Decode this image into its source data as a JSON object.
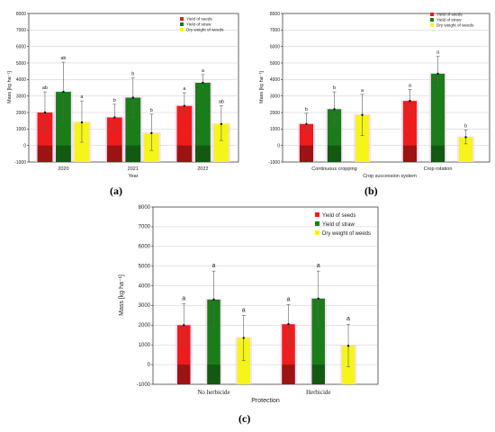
{
  "panels": {
    "a": "(a)",
    "b": "(b)",
    "c": "(c)"
  },
  "legend": {
    "seeds": "Yield of seeds",
    "straw": "Yield of straw",
    "weeds": "Dry weight of weeds"
  },
  "legend_c": {
    "seeds": "Yield of seeds",
    "straw": "Yield of straw",
    "weeds": "Dry weight of weeds"
  },
  "colors": {
    "seeds": "#ee1c1c",
    "straw": "#1a7d1a",
    "weeds": "#f5f51a",
    "seeds_marker": "#5a0d0d",
    "straw_marker": "#0d3d0d",
    "error_bar": "#5f5f5f"
  },
  "chart_data": [
    {
      "type": "bar",
      "id": "a",
      "xlabel": "Year",
      "ylabel": "Mass [kg ha⁻¹]",
      "ylim": [
        -1000,
        8000
      ],
      "yticks": [
        -1000,
        0,
        1000,
        2000,
        3000,
        4000,
        5000,
        6000,
        7000,
        8000
      ],
      "categories": [
        "2020",
        "2021",
        "2022"
      ],
      "series": [
        {
          "name": "Yield of seeds",
          "key": "seeds",
          "values": [
            2000,
            1700,
            2400
          ],
          "err_low": [
            800,
            900,
            2000
          ],
          "err_high": [
            3250,
            2500,
            3200
          ],
          "labels": [
            "ab",
            "b",
            "a"
          ]
        },
        {
          "name": "Yield of straw",
          "key": "straw",
          "values": [
            3250,
            2900,
            3800
          ],
          "err_low": [
            1500,
            1700,
            3500
          ],
          "err_high": [
            5050,
            4100,
            4300
          ],
          "labels": [
            "ab",
            "b",
            "a"
          ]
        },
        {
          "name": "Dry weight of weeds",
          "key": "weeds",
          "values": [
            1400,
            750,
            1300
          ],
          "err_low": [
            200,
            -300,
            300
          ],
          "err_high": [
            2700,
            1900,
            2400
          ],
          "labels": [
            "a",
            "b",
            "ab"
          ]
        }
      ]
    },
    {
      "type": "bar",
      "id": "b",
      "xlabel": "Crop succession system",
      "ylabel": "Mass [kg ha⁻¹]",
      "ylim": [
        -1000,
        8000
      ],
      "yticks": [
        -1000,
        0,
        1000,
        2000,
        3000,
        4000,
        5000,
        6000,
        7000,
        8000
      ],
      "categories": [
        "Continuous cropping",
        "Crop rotation"
      ],
      "series": [
        {
          "name": "Yield of seeds",
          "key": "seeds",
          "values": [
            1300,
            2700
          ],
          "err_low": [
            800,
            2000
          ],
          "err_high": [
            1950,
            3400
          ],
          "labels": [
            "b",
            "a"
          ]
        },
        {
          "name": "Yield of straw",
          "key": "straw",
          "values": [
            2200,
            4350
          ],
          "err_low": [
            1300,
            3600
          ],
          "err_high": [
            3250,
            5400
          ],
          "labels": [
            "b",
            "a"
          ]
        },
        {
          "name": "Dry weight of weeds",
          "key": "weeds",
          "values": [
            1850,
            500
          ],
          "err_low": [
            600,
            100
          ],
          "err_high": [
            3100,
            950
          ],
          "labels": [
            "a",
            "b"
          ]
        }
      ]
    },
    {
      "type": "bar",
      "id": "c",
      "xlabel": "Protection",
      "ylabel": "Mass [kg ha⁻¹]",
      "ylim": [
        -1000,
        8000
      ],
      "yticks": [
        -1000,
        0,
        1000,
        2000,
        3000,
        4000,
        5000,
        6000,
        7000,
        8000
      ],
      "categories": [
        "No herbicide",
        "Herbicide"
      ],
      "series": [
        {
          "name": "Yield of seeds",
          "key": "seeds",
          "values": [
            2000,
            2050
          ],
          "err_low": [
            900,
            1000
          ],
          "err_high": [
            3100,
            3050
          ],
          "labels": [
            "a",
            "a"
          ]
        },
        {
          "name": "Yield of straw",
          "key": "straw",
          "values": [
            3300,
            3350
          ],
          "err_low": [
            1900,
            1900
          ],
          "err_high": [
            4750,
            4750
          ],
          "labels": [
            "a",
            "a"
          ]
        },
        {
          "name": "Dry weight of weeds",
          "key": "weeds",
          "values": [
            1350,
            950
          ],
          "err_low": [
            200,
            -100
          ],
          "err_high": [
            2500,
            2050
          ],
          "labels": [
            "a",
            "a"
          ]
        }
      ]
    }
  ]
}
